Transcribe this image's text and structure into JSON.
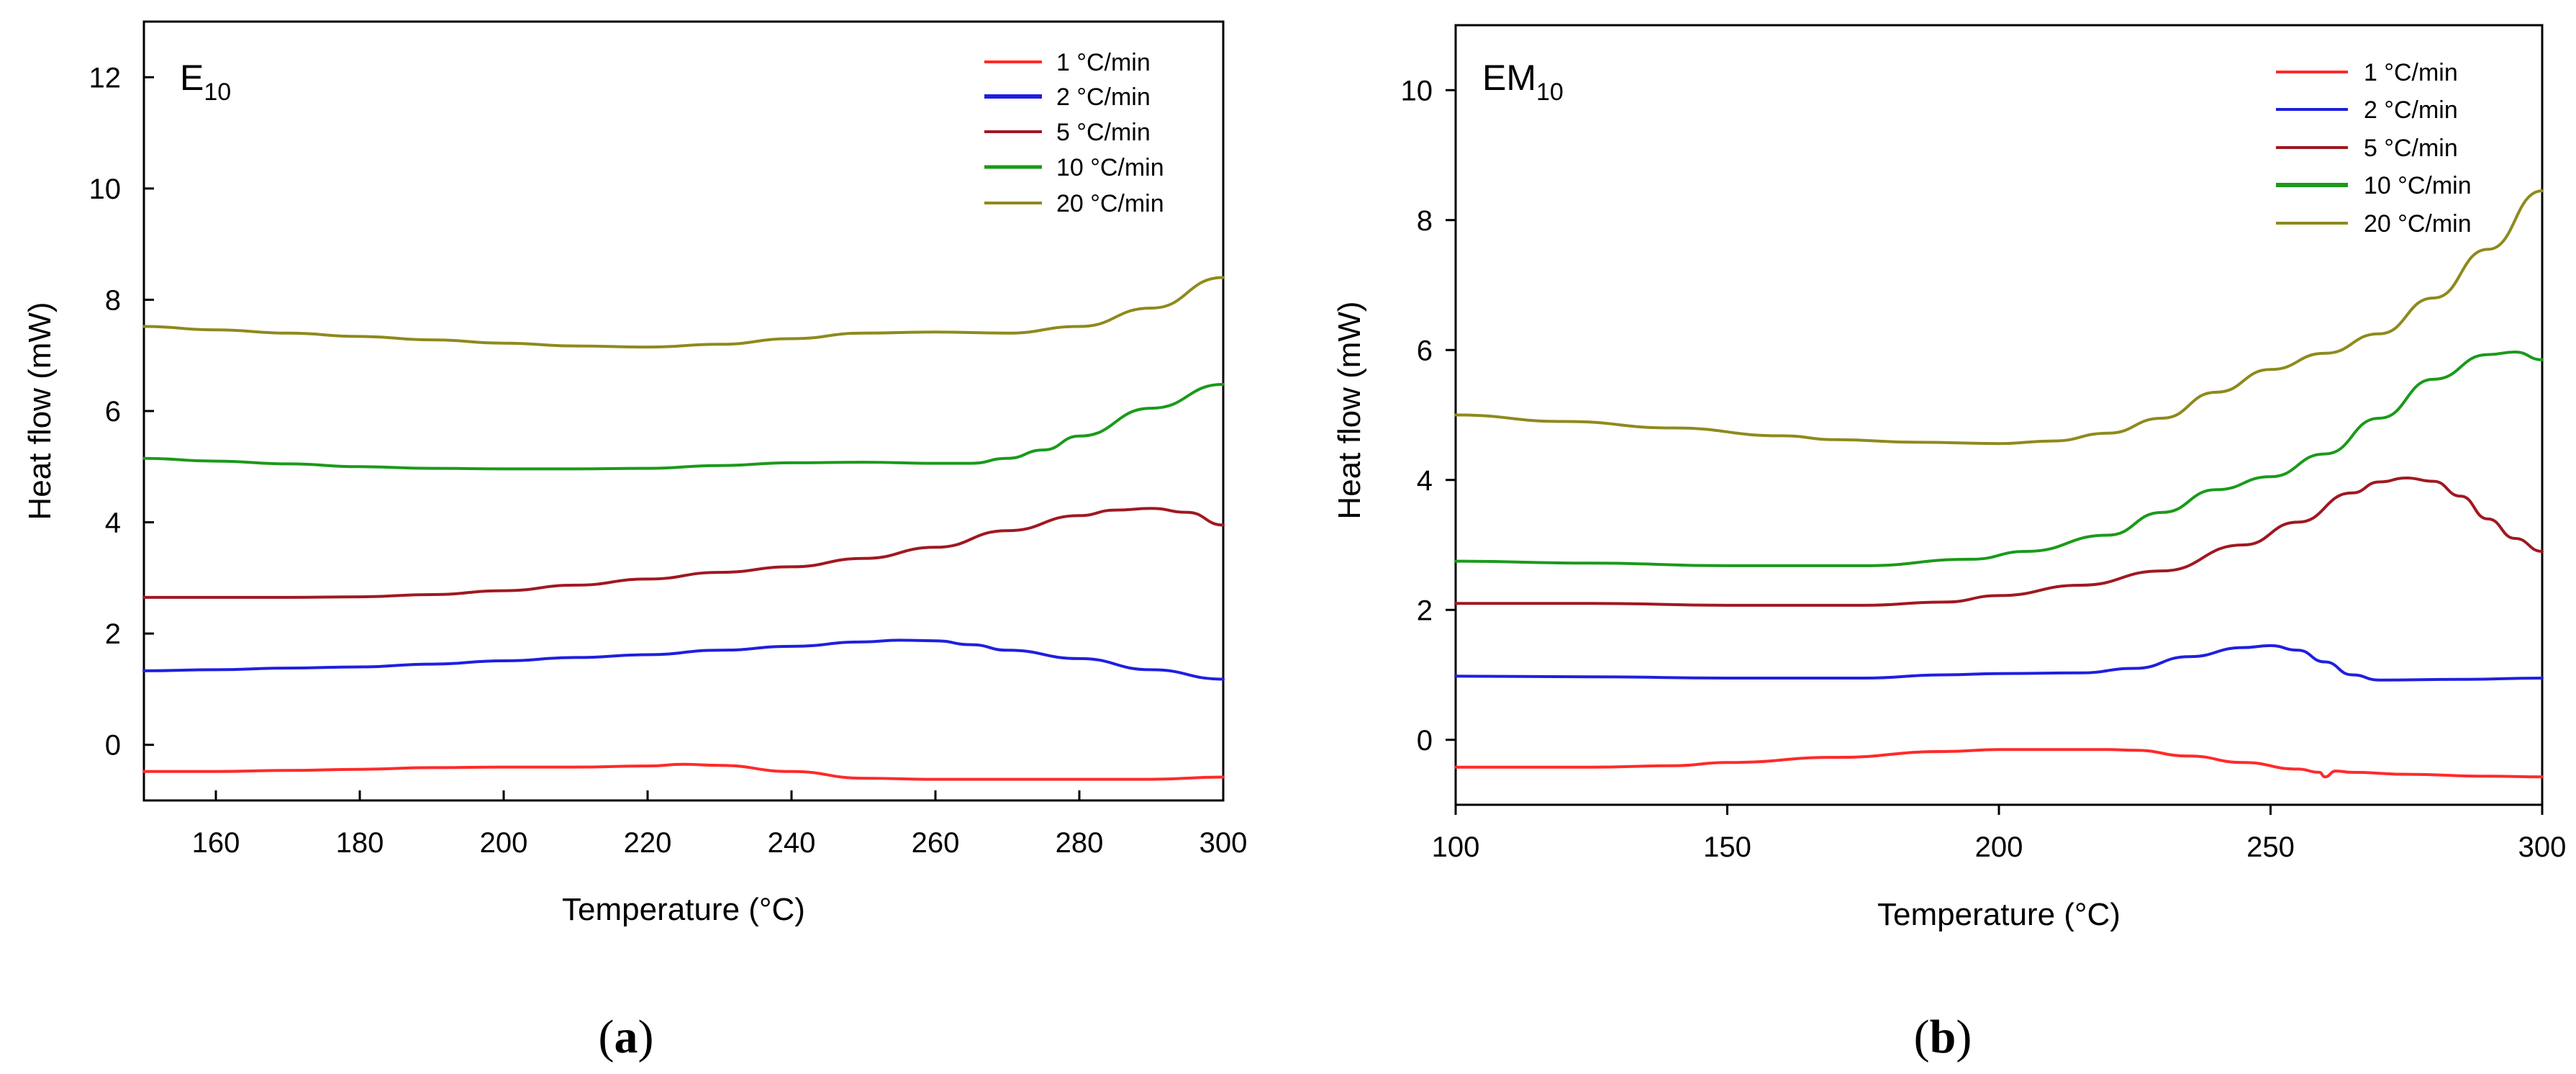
{
  "chart_data": [
    {
      "type": "line",
      "panel_label": "a",
      "title": {
        "main": "E",
        "sub": "10"
      },
      "xlabel": "Temperature (°C)",
      "ylabel": "Heat flow (mW)",
      "xlim": [
        150,
        300
      ],
      "ylim": [
        -1,
        13
      ],
      "xticks": [
        160,
        180,
        200,
        220,
        240,
        260,
        280,
        300
      ],
      "yticks": [
        0,
        2,
        4,
        6,
        8,
        10,
        12
      ],
      "grid": false,
      "legend_position": "top-right",
      "series": [
        {
          "name": "1 °C/min",
          "color": "#ff2a2a",
          "x": [
            150,
            160,
            170,
            180,
            190,
            200,
            210,
            220,
            225,
            230,
            240,
            250,
            260,
            270,
            280,
            290,
            300
          ],
          "y": [
            -0.48,
            -0.48,
            -0.46,
            -0.44,
            -0.41,
            -0.4,
            -0.4,
            -0.38,
            -0.35,
            -0.37,
            -0.48,
            -0.6,
            -0.62,
            -0.62,
            -0.62,
            -0.62,
            -0.58
          ]
        },
        {
          "name": "2 °C/min",
          "color": "#1f1fe0",
          "x": [
            150,
            160,
            170,
            180,
            190,
            200,
            210,
            220,
            230,
            240,
            250,
            255,
            260,
            265,
            270,
            280,
            290,
            300
          ],
          "y": [
            1.33,
            1.35,
            1.38,
            1.4,
            1.45,
            1.51,
            1.57,
            1.62,
            1.7,
            1.77,
            1.85,
            1.88,
            1.87,
            1.8,
            1.7,
            1.55,
            1.35,
            1.18
          ]
        },
        {
          "name": "5 °C/min",
          "color": "#a01820",
          "x": [
            150,
            160,
            170,
            180,
            190,
            200,
            210,
            220,
            230,
            240,
            250,
            260,
            270,
            280,
            285,
            290,
            295,
            300
          ],
          "y": [
            2.65,
            2.65,
            2.65,
            2.66,
            2.7,
            2.77,
            2.87,
            2.98,
            3.1,
            3.2,
            3.35,
            3.55,
            3.85,
            4.12,
            4.22,
            4.25,
            4.18,
            3.95
          ]
        },
        {
          "name": "10 °C/min",
          "color": "#1a9a1a",
          "x": [
            150,
            160,
            170,
            180,
            190,
            200,
            210,
            220,
            230,
            240,
            250,
            260,
            265,
            270,
            275,
            280,
            290,
            300
          ],
          "y": [
            5.15,
            5.1,
            5.05,
            5.0,
            4.97,
            4.96,
            4.96,
            4.97,
            5.02,
            5.07,
            5.08,
            5.06,
            5.06,
            5.15,
            5.3,
            5.55,
            6.05,
            6.48
          ]
        },
        {
          "name": "20 °C/min",
          "color": "#8e8a1c",
          "x": [
            150,
            160,
            170,
            180,
            190,
            200,
            210,
            220,
            230,
            240,
            250,
            260,
            270,
            280,
            290,
            300
          ],
          "y": [
            7.52,
            7.46,
            7.4,
            7.34,
            7.28,
            7.22,
            7.17,
            7.15,
            7.2,
            7.3,
            7.4,
            7.42,
            7.4,
            7.52,
            7.85,
            8.4
          ]
        }
      ]
    },
    {
      "type": "line",
      "panel_label": "b",
      "title": {
        "main": "EM",
        "sub": "10"
      },
      "xlabel": "Temperature (°C)",
      "ylabel": "Heat flow (mW)",
      "xlim": [
        100,
        300
      ],
      "ylim": [
        -1,
        11
      ],
      "xticks": [
        100,
        150,
        200,
        250,
        300
      ],
      "yticks": [
        0,
        2,
        4,
        6,
        8,
        10
      ],
      "grid": false,
      "legend_position": "top-right",
      "series": [
        {
          "name": "1 °C/min",
          "color": "#ff2a2a",
          "x": [
            100,
            125,
            140,
            150,
            170,
            190,
            200,
            220,
            225,
            235,
            245,
            255,
            259,
            260,
            262,
            265,
            275,
            290,
            300
          ],
          "y": [
            -0.42,
            -0.42,
            -0.4,
            -0.35,
            -0.27,
            -0.18,
            -0.15,
            -0.15,
            -0.16,
            -0.25,
            -0.35,
            -0.45,
            -0.5,
            -0.57,
            -0.48,
            -0.5,
            -0.53,
            -0.56,
            -0.57
          ]
        },
        {
          "name": "2 °C/min",
          "color": "#1f1fe0",
          "x": [
            100,
            125,
            150,
            175,
            190,
            200,
            215,
            225,
            235,
            245,
            250,
            255,
            260,
            265,
            270,
            285,
            300
          ],
          "y": [
            0.98,
            0.97,
            0.95,
            0.95,
            1.0,
            1.02,
            1.03,
            1.1,
            1.28,
            1.42,
            1.45,
            1.38,
            1.2,
            1.0,
            0.92,
            0.93,
            0.95
          ]
        },
        {
          "name": "5 °C/min",
          "color": "#a01820",
          "x": [
            100,
            125,
            150,
            175,
            190,
            200,
            215,
            230,
            245,
            255,
            265,
            270,
            275,
            280,
            285,
            290,
            295,
            300
          ],
          "y": [
            2.1,
            2.1,
            2.07,
            2.07,
            2.12,
            2.22,
            2.38,
            2.6,
            3.0,
            3.35,
            3.8,
            3.97,
            4.03,
            3.98,
            3.75,
            3.4,
            3.1,
            2.9
          ]
        },
        {
          "name": "10 °C/min",
          "color": "#1a9a1a",
          "x": [
            100,
            125,
            150,
            175,
            195,
            205,
            220,
            230,
            240,
            250,
            260,
            270,
            280,
            290,
            295,
            300
          ],
          "y": [
            2.75,
            2.72,
            2.68,
            2.68,
            2.78,
            2.9,
            3.15,
            3.5,
            3.85,
            4.05,
            4.4,
            4.95,
            5.55,
            5.93,
            5.97,
            5.85
          ]
        },
        {
          "name": "20 °C/min",
          "color": "#8e8a1c",
          "x": [
            100,
            120,
            140,
            160,
            170,
            185,
            200,
            210,
            220,
            230,
            240,
            250,
            260,
            270,
            280,
            290,
            300
          ],
          "y": [
            5.0,
            4.9,
            4.8,
            4.68,
            4.62,
            4.58,
            4.56,
            4.6,
            4.72,
            4.95,
            5.35,
            5.7,
            5.95,
            6.25,
            6.8,
            7.55,
            8.45
          ]
        }
      ]
    }
  ]
}
